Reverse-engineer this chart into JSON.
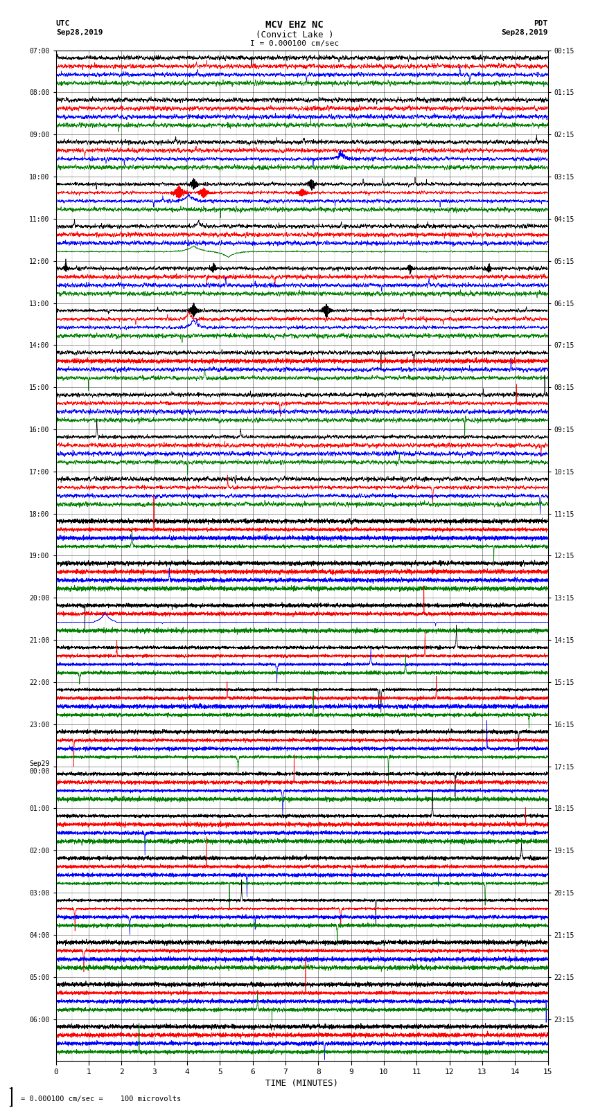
{
  "title_line1": "MCV EHZ NC",
  "title_line2": "(Convict Lake )",
  "title_line3": "I = 0.000100 cm/sec",
  "left_label_top": "UTC",
  "left_label_date": "Sep28,2019",
  "right_label_top": "PDT",
  "right_label_date": "Sep28,2019",
  "bottom_label": "TIME (MINUTES)",
  "scale_label": "= 0.000100 cm/sec =    100 microvolts",
  "utc_times": [
    "07:00",
    "08:00",
    "09:00",
    "10:00",
    "11:00",
    "12:00",
    "13:00",
    "14:00",
    "15:00",
    "16:00",
    "17:00",
    "18:00",
    "19:00",
    "20:00",
    "21:00",
    "22:00",
    "23:00",
    "Sep29\n00:00",
    "01:00",
    "02:00",
    "03:00",
    "04:00",
    "05:00",
    "06:00"
  ],
  "pdt_times": [
    "00:15",
    "01:15",
    "02:15",
    "03:15",
    "04:15",
    "05:15",
    "06:15",
    "07:15",
    "08:15",
    "09:15",
    "10:15",
    "11:15",
    "12:15",
    "13:15",
    "14:15",
    "15:15",
    "16:15",
    "17:15",
    "18:15",
    "19:15",
    "20:15",
    "21:15",
    "22:15",
    "23:15"
  ],
  "n_rows": 24,
  "n_traces_per_row": 4,
  "colors": [
    "black",
    "red",
    "blue",
    "green"
  ],
  "bg_color": "white",
  "line_width": 0.5,
  "fig_width": 8.5,
  "fig_height": 16.13
}
